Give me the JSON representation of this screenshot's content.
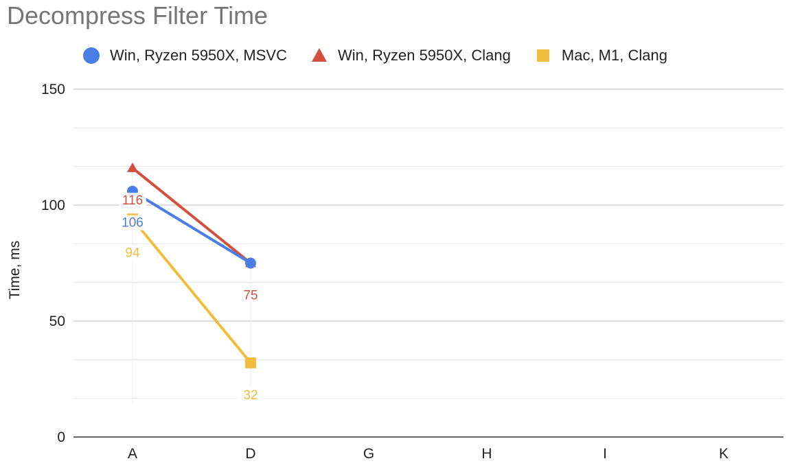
{
  "chart_data": {
    "type": "line",
    "title": "Decompress Filter Time",
    "xlabel": "",
    "ylabel": "Time, ms",
    "categories": [
      "A",
      "D",
      "G",
      "H",
      "I",
      "K"
    ],
    "ylim": [
      0,
      150
    ],
    "yticks": [
      0,
      50,
      100,
      150
    ],
    "grid": true,
    "legend_position": "top",
    "series": [
      {
        "name": "Win, Ryzen 5950X, MSVC",
        "marker": "circle",
        "color": "#4a7ee6",
        "values": [
          106,
          75,
          null,
          null,
          null,
          null
        ],
        "labels": [
          "106",
          "",
          "",
          "",
          "",
          ""
        ]
      },
      {
        "name": "Win, Ryzen 5950X, Clang",
        "marker": "triangle",
        "color": "#d2503d",
        "values": [
          116,
          75,
          null,
          null,
          null,
          null
        ],
        "labels": [
          "116",
          "75",
          "",
          "",
          "",
          ""
        ]
      },
      {
        "name": "Mac, M1, Clang",
        "marker": "square",
        "color": "#f0be3c",
        "values": [
          94,
          32,
          null,
          null,
          null,
          null
        ],
        "labels": [
          "94",
          "32",
          "",
          "",
          "",
          ""
        ]
      }
    ]
  }
}
